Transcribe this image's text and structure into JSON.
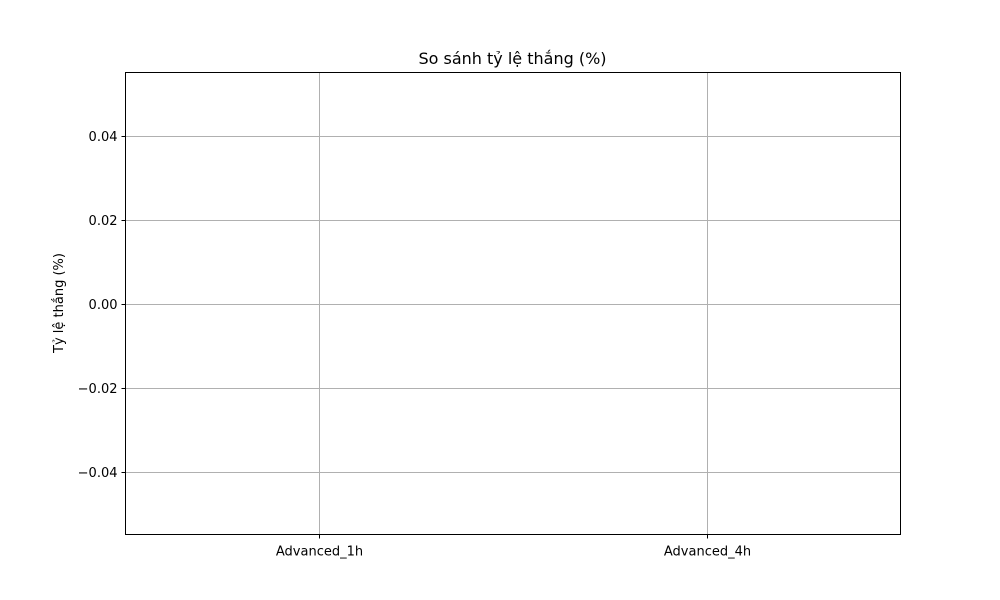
{
  "chart_data": {
    "type": "bar",
    "title": "So sánh tỷ lệ thắng (%)",
    "xlabel": "",
    "ylabel": "Tỷ lệ thắng (%)",
    "categories": [
      "Advanced_1h",
      "Advanced_4h"
    ],
    "values": [
      0,
      0
    ],
    "ylim": [
      -0.055,
      0.055
    ],
    "yticks": [
      0.04,
      0.02,
      0.0,
      -0.02,
      -0.04
    ],
    "ytick_labels": [
      "0.04",
      "0.02",
      "0.00",
      "−0.02",
      "−0.04"
    ],
    "grid": true,
    "legend": "none"
  }
}
